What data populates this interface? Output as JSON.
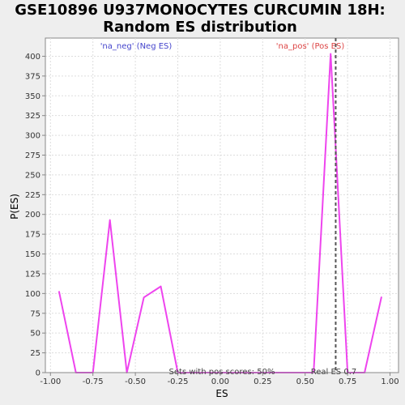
{
  "chart_data": {
    "type": "line",
    "title_line1": "GSE10896 U937MONOCYTES CURCUMIN 18H:",
    "title_line2": "Random ES distribution",
    "xlabel": "ES",
    "ylabel": "P(ES)",
    "xlim": [
      -1.03,
      1.05
    ],
    "ylim": [
      0,
      423
    ],
    "xticks": [
      -1.0,
      -0.75,
      -0.5,
      -0.25,
      0.0,
      0.25,
      0.5,
      0.75,
      1.0
    ],
    "xtick_labels": [
      "-1.00",
      "-0.75",
      "-0.50",
      "-0.25",
      "0.00",
      "0.25",
      "0.50",
      "0.75",
      "1.00"
    ],
    "yticks": [
      0,
      25,
      50,
      75,
      100,
      125,
      150,
      175,
      200,
      225,
      250,
      275,
      300,
      325,
      350,
      375,
      400
    ],
    "grid": true,
    "series": [
      {
        "color": "#ee44ee",
        "x": [
          -0.95,
          -0.85,
          -0.75,
          -0.65,
          -0.55,
          -0.45,
          -0.35,
          -0.25,
          -0.15,
          0.05,
          0.25,
          0.45,
          0.55,
          0.65,
          0.68,
          0.75,
          0.85,
          0.95
        ],
        "y": [
          103,
          0,
          0,
          193,
          0,
          95,
          109,
          0,
          0,
          0,
          0,
          0,
          0,
          403,
          285,
          0,
          0,
          96
        ]
      }
    ],
    "marker_line": {
      "x": 0.68,
      "color": "#555555",
      "style": "dashed"
    },
    "annotations": {
      "neg_label": "'na_neg' (Neg ES)",
      "neg_color": "#4444cc",
      "pos_label": "'na_pos' (Pos ES)",
      "pos_color": "#dd4444",
      "sets_label": "Sets with pos scores: 50%",
      "real_es_label": "Real ES 0.7"
    }
  }
}
